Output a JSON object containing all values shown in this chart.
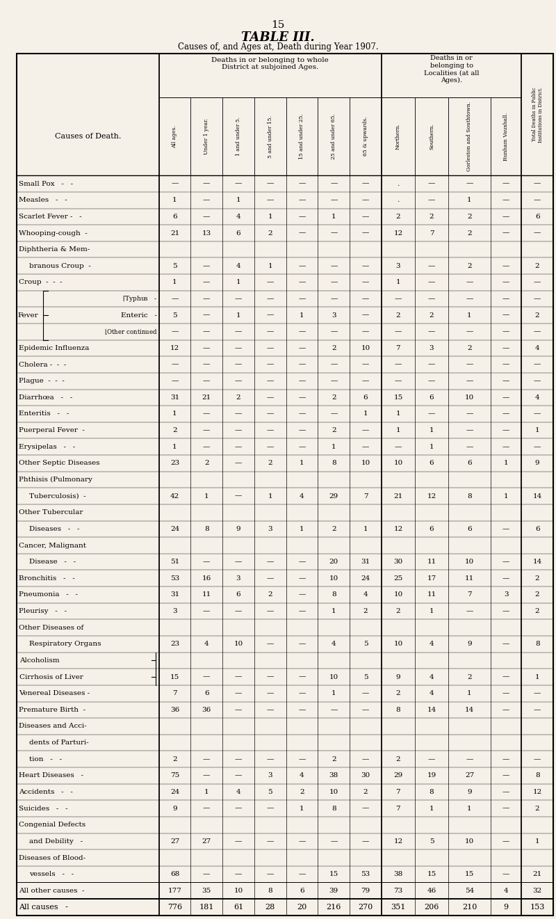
{
  "page_number": "15",
  "title": "TABLE III.",
  "subtitle": "Causes of, and Ages at, Death during Year 1907.",
  "bg_color": "#f5f0e8",
  "col_headers_rotated": [
    "All ages.",
    "Under 1 year.",
    "1 and under 5.",
    "5 and under 15.",
    "15 and under 25.",
    "25 and under 65.",
    "65 & upwards.",
    "Northern.",
    "Southern.",
    "Gorleston and Southtown.",
    "Runham Vauxhall.",
    "Total Deaths in Public Institutions in District."
  ],
  "cause_col_header": "Causes of Death.",
  "rows": [
    {
      "cause": "Small Pox   -   -",
      "indent": 0,
      "vals": [
        "—",
        "—",
        "—",
        "—",
        "—",
        "—",
        "—",
        ".",
        "—",
        "—",
        "—",
        "—"
      ]
    },
    {
      "cause": "Measles   -   -",
      "indent": 0,
      "vals": [
        "1",
        "—",
        "1",
        "—",
        "—",
        "—",
        "—",
        ".",
        "—",
        "1",
        "—",
        "—"
      ]
    },
    {
      "cause": "Scarlet Fever -   -",
      "indent": 0,
      "vals": [
        "6",
        "—",
        "4",
        "1",
        "—",
        "1",
        "—",
        "2",
        "2",
        "2",
        "—",
        "6"
      ]
    },
    {
      "cause": "Whooping-cough  -",
      "indent": 0,
      "vals": [
        "21",
        "13",
        "6",
        "2",
        "—",
        "—",
        "—",
        "12",
        "7",
        "2",
        "—",
        "—"
      ]
    },
    {
      "cause": "Diphtheria & Mem-",
      "indent": 0,
      "vals": [
        "",
        "",
        "",
        "",
        "",
        "",
        "",
        "",
        "",
        "",
        "",
        ""
      ]
    },
    {
      "cause": "branous Croup  -",
      "indent": 1,
      "vals": [
        "5",
        "—",
        "4",
        "1",
        "—",
        "—",
        "—",
        "3",
        "—",
        "2",
        "—",
        "2"
      ]
    },
    {
      "cause": "Croup  -  -  -",
      "indent": 0,
      "vals": [
        "1",
        "—",
        "1",
        "—",
        "—",
        "—",
        "—",
        "1",
        "—",
        "—",
        "—",
        "—"
      ]
    },
    {
      "cause": "TYPHUS_ROW",
      "indent": 0,
      "vals": [
        "—",
        "—",
        "—",
        "—",
        "—",
        "—",
        "—",
        "—",
        "—",
        "—",
        "—",
        "—"
      ]
    },
    {
      "cause": "ENTERIC_ROW",
      "indent": 0,
      "vals": [
        "5",
        "—",
        "1",
        "—",
        "1",
        "3",
        "—",
        "2",
        "2",
        "1",
        "—",
        "2"
      ]
    },
    {
      "cause": "OTHER_CONT_ROW",
      "indent": 0,
      "vals": [
        "—",
        "—",
        "—",
        "—",
        "—",
        "—",
        "—",
        "—",
        "—",
        "—",
        "—",
        "—"
      ]
    },
    {
      "cause": "Epidemic Influenza",
      "indent": 0,
      "vals": [
        "12",
        "—",
        "—",
        "—",
        "—",
        "2",
        "10",
        "7",
        "3",
        "2",
        "—",
        "4"
      ]
    },
    {
      "cause": "Cholera -  -  -",
      "indent": 0,
      "vals": [
        "—",
        "—",
        "—",
        "—",
        "—",
        "—",
        "—",
        "—",
        "—",
        "—",
        "—",
        "—"
      ]
    },
    {
      "cause": "Plague  -  -  -",
      "indent": 0,
      "vals": [
        "—",
        "—",
        "—",
        "—",
        "—",
        "—",
        "—",
        "—",
        "—",
        "—",
        "—",
        "—"
      ]
    },
    {
      "cause": "Diarrhœa   -   -",
      "indent": 0,
      "vals": [
        "31",
        "21",
        "2",
        "—",
        "—",
        "2",
        "6",
        "15",
        "6",
        "10",
        "—",
        "4"
      ]
    },
    {
      "cause": "Enteritis   -   -",
      "indent": 0,
      "vals": [
        "1",
        "—",
        "—",
        "—",
        "—",
        "—",
        "1",
        "1",
        "—",
        "—",
        "—",
        "—"
      ]
    },
    {
      "cause": "Puerperal Fever  -",
      "indent": 0,
      "vals": [
        "2",
        "—",
        "—",
        "—",
        "—",
        "2",
        "—",
        "1",
        "1",
        "—",
        "—",
        "1"
      ]
    },
    {
      "cause": "Erysipelas   -   -",
      "indent": 0,
      "vals": [
        "1",
        "—",
        "—",
        "—",
        "—",
        "1",
        "—",
        "—",
        "1",
        "—",
        "—",
        "—"
      ]
    },
    {
      "cause": "Other Septic Diseases",
      "indent": 0,
      "vals": [
        "23",
        "2",
        "—",
        "2",
        "1",
        "8",
        "10",
        "10",
        "6",
        "6",
        "1",
        "9"
      ]
    },
    {
      "cause": "Phthisis (Pulmonary",
      "indent": 0,
      "vals": [
        "",
        "",
        "",
        "",
        "",
        "",
        "",
        "",
        "",
        "",
        "",
        ""
      ]
    },
    {
      "cause": "Tuberculosis)  -",
      "indent": 1,
      "vals": [
        "42",
        "1",
        "—",
        "1",
        "4",
        "29",
        "7",
        "21",
        "12",
        "8",
        "1",
        "14"
      ]
    },
    {
      "cause": "Other Tubercular",
      "indent": 0,
      "vals": [
        "",
        "",
        "",
        "",
        "",
        "",
        "",
        "",
        "",
        "",
        "",
        ""
      ]
    },
    {
      "cause": "Diseases   -   -",
      "indent": 1,
      "vals": [
        "24",
        "8",
        "9",
        "3",
        "1",
        "2",
        "1",
        "12",
        "6",
        "6",
        "—",
        "6"
      ]
    },
    {
      "cause": "Cancer, Malignant",
      "indent": 0,
      "vals": [
        "",
        "",
        "",
        "",
        "",
        "",
        "",
        "",
        "",
        "",
        "",
        ""
      ]
    },
    {
      "cause": "Disease   -   -",
      "indent": 1,
      "vals": [
        "51",
        "—",
        "—",
        "—",
        "—",
        "20",
        "31",
        "30",
        "11",
        "10",
        "—",
        "14"
      ]
    },
    {
      "cause": "Bronchitis   -   -",
      "indent": 0,
      "vals": [
        "53",
        "16",
        "3",
        "—",
        "—",
        "10",
        "24",
        "25",
        "17",
        "11",
        "—",
        "2"
      ]
    },
    {
      "cause": "Pneumonia   -   -",
      "indent": 0,
      "vals": [
        "31",
        "11",
        "6",
        "2",
        "—",
        "8",
        "4",
        "10",
        "11",
        "7",
        "3",
        "2"
      ]
    },
    {
      "cause": "Pleurisy   -   -",
      "indent": 0,
      "vals": [
        "3",
        "—",
        "—",
        "—",
        "—",
        "1",
        "2",
        "2",
        "1",
        "—",
        "—",
        "2"
      ]
    },
    {
      "cause": "Other Diseases of",
      "indent": 0,
      "vals": [
        "",
        "",
        "",
        "",
        "",
        "",
        "",
        "",
        "",
        "",
        "",
        ""
      ]
    },
    {
      "cause": "Respiratory Organs",
      "indent": 1,
      "vals": [
        "23",
        "4",
        "10",
        "—",
        "—",
        "4",
        "5",
        "10",
        "4",
        "9",
        "—",
        "8"
      ]
    },
    {
      "cause": "ALC_ROW",
      "indent": 0,
      "vals": [
        "",
        "",
        "",
        "",
        "",
        "",
        "",
        "",
        "",
        "",
        "",
        ""
      ]
    },
    {
      "cause": "CIRR_ROW",
      "indent": 0,
      "vals": [
        "15",
        "—",
        "—",
        "—",
        "—",
        "10",
        "5",
        "9",
        "4",
        "2",
        "—",
        "1"
      ]
    },
    {
      "cause": "Venereal Diseases -",
      "indent": 0,
      "vals": [
        "7",
        "6",
        "—",
        "—",
        "—",
        "1",
        "—",
        "2",
        "4",
        "1",
        "—",
        "—"
      ]
    },
    {
      "cause": "Premature Birth  -",
      "indent": 0,
      "vals": [
        "36",
        "36",
        "—",
        "—",
        "—",
        "—",
        "—",
        "8",
        "14",
        "14",
        "—",
        "—"
      ]
    },
    {
      "cause": "Diseases and Acci-",
      "indent": 0,
      "vals": [
        "",
        "",
        "",
        "",
        "",
        "",
        "",
        "",
        "",
        "",
        "",
        ""
      ]
    },
    {
      "cause": "dents of Parturi-",
      "indent": 1,
      "vals": [
        "",
        "",
        "",
        "",
        "",
        "",
        "",
        "",
        "",
        "",
        "",
        ""
      ]
    },
    {
      "cause": "tion   -   -",
      "indent": 1,
      "vals": [
        "2",
        "—",
        "—",
        "—",
        "—",
        "2",
        "—",
        "2",
        "—",
        "—",
        "—",
        "—"
      ]
    },
    {
      "cause": "Heart Diseases   -",
      "indent": 0,
      "vals": [
        "75",
        "—",
        "—",
        "3",
        "4",
        "38",
        "30",
        "29",
        "19",
        "27",
        "—",
        "8"
      ]
    },
    {
      "cause": "Accidents   -   -",
      "indent": 0,
      "vals": [
        "24",
        "1",
        "4",
        "5",
        "2",
        "10",
        "2",
        "7",
        "8",
        "9",
        "—",
        "12"
      ]
    },
    {
      "cause": "Suicides   -   -",
      "indent": 0,
      "vals": [
        "9",
        "—",
        "—",
        "—",
        "1",
        "8",
        "—",
        "7",
        "1",
        "1",
        "—",
        "2"
      ]
    },
    {
      "cause": "Congenial Defects",
      "indent": 0,
      "vals": [
        "",
        "",
        "",
        "",
        "",
        "",
        "",
        "",
        "",
        "",
        "",
        ""
      ]
    },
    {
      "cause": "and Debility   -",
      "indent": 1,
      "vals": [
        "27",
        "27",
        "—",
        "—",
        "—",
        "—",
        "—",
        "12",
        "5",
        "10",
        "—",
        "1"
      ]
    },
    {
      "cause": "Diseases of Blood-",
      "indent": 0,
      "vals": [
        "",
        "",
        "",
        "",
        "",
        "",
        "",
        "",
        "",
        "",
        "",
        ""
      ]
    },
    {
      "cause": "vessels   -   -",
      "indent": 1,
      "vals": [
        "68",
        "—",
        "—",
        "—",
        "—",
        "15",
        "53",
        "38",
        "15",
        "15",
        "—",
        "21"
      ]
    },
    {
      "cause": "All other causes  -",
      "indent": 0,
      "vals": [
        "177",
        "35",
        "10",
        "8",
        "6",
        "39",
        "79",
        "73",
        "46",
        "54",
        "4",
        "32"
      ]
    },
    {
      "cause": "All causes   -",
      "indent": 0,
      "vals": [
        "776",
        "181",
        "61",
        "28",
        "20",
        "216",
        "270",
        "351",
        "206",
        "210",
        "9",
        "153"
      ]
    }
  ]
}
